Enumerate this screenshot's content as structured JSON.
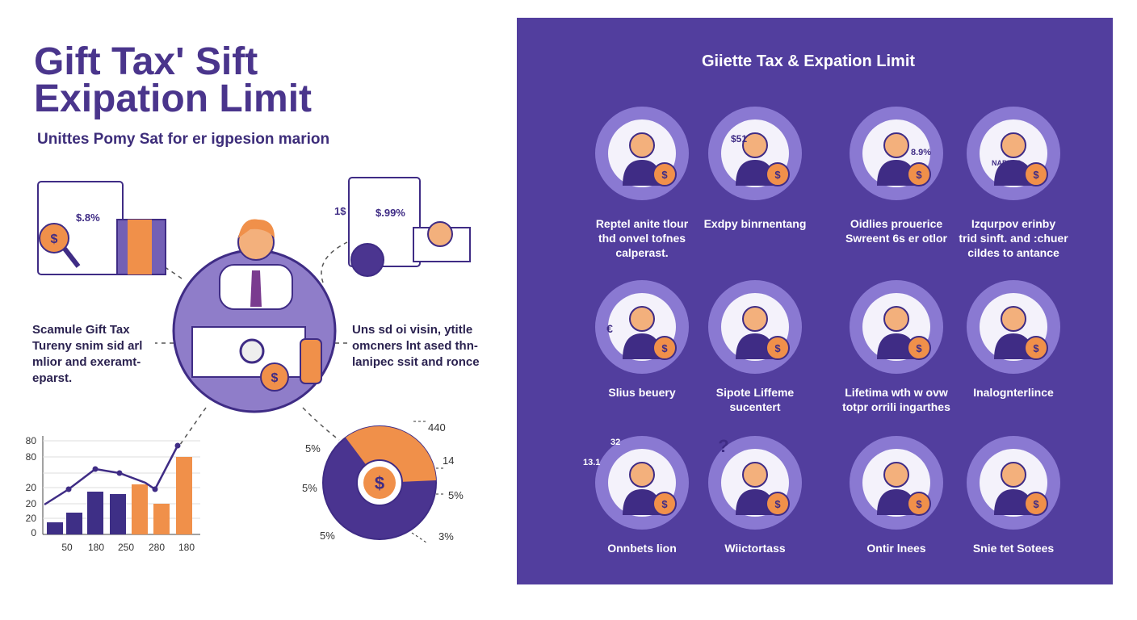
{
  "header": {
    "title_lines": [
      "Gift Tax' Sift",
      "Exipation Limit"
    ],
    "subtitle": "Unittes Pomy Sat for er igpesion marion"
  },
  "left_note": {
    "lines": [
      "Scamule Gift Tax",
      "Tureny snim sid arl",
      "mlior and exeramt-",
      "eparst."
    ]
  },
  "right_note": {
    "lines": [
      "Uns sd oi visin, ytitle",
      "omcners lnt ased thn-",
      "lanipec ssit and ronce"
    ]
  },
  "illustration_labels": [
    "$.8%",
    "$.99%",
    "1$",
    "$51",
    "8.9%",
    "NAPLES",
    "13.1",
    "32"
  ],
  "mini_chart": {
    "y_labels": [
      "80",
      "80",
      "20",
      "20",
      "20",
      "0"
    ],
    "x_labels": [
      "50",
      "180",
      "250",
      "280",
      "180"
    ]
  },
  "pie_labels": [
    "5%",
    "5%",
    "5%",
    "440",
    "14",
    "5%",
    "3%"
  ],
  "symbols": {
    "dollar": "$",
    "euro": "€",
    "question": "?"
  },
  "panel": {
    "title": "Giiette Tax & Expation Limit",
    "items": [
      {
        "lines": [
          "Reptel anite tlour",
          "thd onvel tofnes",
          "calperast."
        ]
      },
      {
        "lines": [
          "Exdpy binrnentang"
        ]
      },
      {
        "lines": [
          "Oidlies prouerice",
          "Swreent 6s er otlor"
        ]
      },
      {
        "lines": [
          "Izqurpov erinby",
          "trid sinft. and :chuer",
          "cildes to antance"
        ]
      },
      {
        "lines": [
          "Slius beuery"
        ]
      },
      {
        "lines": [
          "Sipote Liffeme",
          "sucentert"
        ]
      },
      {
        "lines": [
          "Lifetima wth w ovw",
          "totpr orrili ingarthes"
        ]
      },
      {
        "lines": [
          "Inalognterlince"
        ]
      },
      {
        "lines": [
          "Onnbets lion"
        ]
      },
      {
        "lines": [
          "Wiictortass"
        ]
      },
      {
        "lines": [
          "Ontir lnees"
        ]
      },
      {
        "lines": [
          "Snie tet Sotees"
        ]
      }
    ]
  }
}
